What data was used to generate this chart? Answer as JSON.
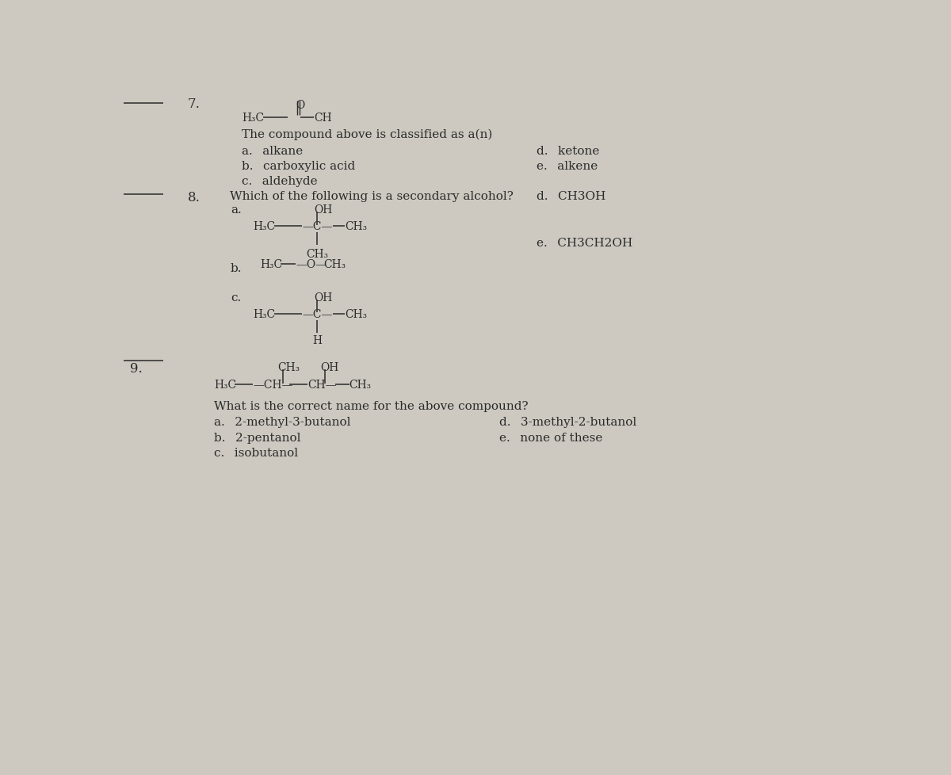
{
  "bg_color": "#cdc9c0",
  "text_color": "#2a2a2a",
  "figsize": [
    12.0,
    9.79
  ],
  "dpi": 100,
  "q7_num": "7.",
  "q8_num": "8.",
  "q9_num": "9.",
  "q7_text": "The compound above is classified as a(n)",
  "q8_text": "Which of the following is a secondary alcohol?",
  "q9_text": "What is the correct name for the above compound?",
  "q7_opts": [
    "a.  alkane",
    "b.  carboxylic acid",
    "c.  aldehyde",
    "d.  ketone",
    "e.  alkene"
  ],
  "q8_opts": [
    "d.  CH3OH",
    "e.  CH3CH2OH"
  ],
  "q9_opts": [
    "a.  2-methyl-3-butanol",
    "b.  2-pentanol",
    "c.  isobutanol",
    "d.  3-methyl-2-butanol",
    "e.  none of these"
  ]
}
